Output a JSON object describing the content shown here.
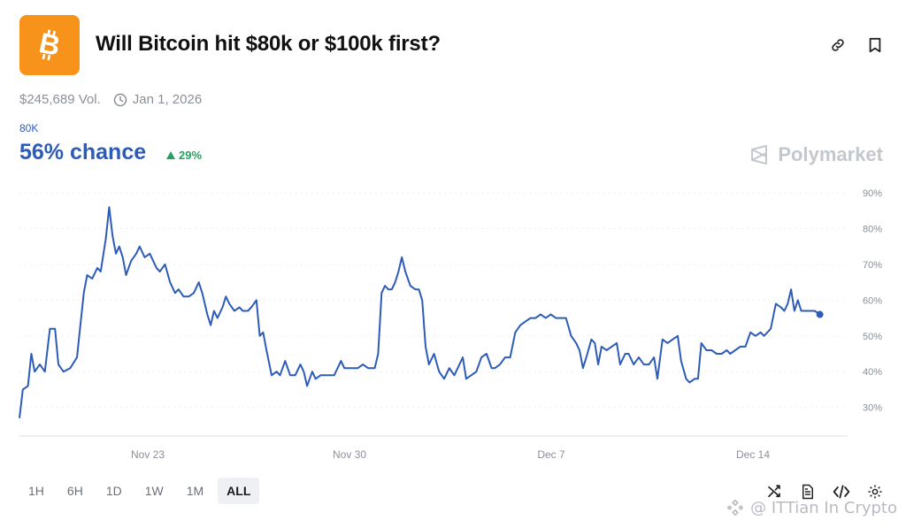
{
  "header": {
    "title": "Will Bitcoin hit $80k or $100k first?",
    "logo_glyph": "B",
    "logo_color": "#f7931a"
  },
  "meta": {
    "volume": "$245,689 Vol.",
    "end_date": "Jan 1, 2026"
  },
  "outcome": {
    "label": "80K",
    "chance": "56% chance",
    "delta": "29%",
    "accent": "#2c5bb8",
    "delta_color": "#27a061"
  },
  "brand": {
    "name": "Polymarket"
  },
  "range_tabs": [
    {
      "label": "1H"
    },
    {
      "label": "6H"
    },
    {
      "label": "1D"
    },
    {
      "label": "1W"
    },
    {
      "label": "1M"
    },
    {
      "label": "ALL",
      "active": true
    }
  ],
  "watermark": "@ ITTian In Crypto",
  "chart_data": {
    "type": "line",
    "xlabel": "",
    "ylabel": "",
    "x_ticks": [
      "Nov 23",
      "Nov 30",
      "Dec 7",
      "Dec 14"
    ],
    "y_ticks": [
      "30%",
      "40%",
      "50%",
      "60%",
      "70%",
      "80%",
      "90%"
    ],
    "ylim": [
      22,
      92
    ],
    "xlim_days": [
      0,
      24
    ],
    "tick_day_positions": [
      4,
      11,
      18,
      25
    ],
    "grid": true,
    "series": [
      {
        "color": "#2c5bb8",
        "points": [
          [
            0.0,
            27
          ],
          [
            0.1,
            35
          ],
          [
            0.25,
            36
          ],
          [
            0.35,
            45
          ],
          [
            0.45,
            40
          ],
          [
            0.6,
            42
          ],
          [
            0.75,
            40
          ],
          [
            0.9,
            52
          ],
          [
            1.05,
            52
          ],
          [
            1.15,
            42
          ],
          [
            1.3,
            40
          ],
          [
            1.5,
            41
          ],
          [
            1.7,
            44
          ],
          [
            1.9,
            62
          ],
          [
            2.0,
            67
          ],
          [
            2.15,
            66
          ],
          [
            2.3,
            69
          ],
          [
            2.4,
            68
          ],
          [
            2.55,
            77
          ],
          [
            2.65,
            86
          ],
          [
            2.75,
            78
          ],
          [
            2.85,
            73
          ],
          [
            2.95,
            75
          ],
          [
            3.05,
            72
          ],
          [
            3.15,
            67
          ],
          [
            3.3,
            71
          ],
          [
            3.45,
            73
          ],
          [
            3.55,
            75
          ],
          [
            3.7,
            72
          ],
          [
            3.85,
            73
          ],
          [
            3.95,
            71
          ],
          [
            4.05,
            69
          ],
          [
            4.15,
            68
          ],
          [
            4.3,
            70
          ],
          [
            4.45,
            65
          ],
          [
            4.6,
            62
          ],
          [
            4.7,
            63
          ],
          [
            4.85,
            61
          ],
          [
            5.0,
            61
          ],
          [
            5.15,
            62
          ],
          [
            5.3,
            65
          ],
          [
            5.4,
            62
          ],
          [
            5.55,
            56
          ],
          [
            5.65,
            53
          ],
          [
            5.75,
            57
          ],
          [
            5.85,
            55
          ],
          [
            6.0,
            58
          ],
          [
            6.1,
            61
          ],
          [
            6.2,
            59
          ],
          [
            6.35,
            57
          ],
          [
            6.5,
            58
          ],
          [
            6.6,
            57
          ],
          [
            6.75,
            57
          ],
          [
            6.85,
            58
          ],
          [
            7.0,
            60
          ],
          [
            7.1,
            50
          ],
          [
            7.2,
            51
          ],
          [
            7.3,
            46
          ],
          [
            7.45,
            39
          ],
          [
            7.6,
            40
          ],
          [
            7.7,
            39
          ],
          [
            7.85,
            43
          ],
          [
            8.0,
            39
          ],
          [
            8.15,
            39
          ],
          [
            8.3,
            42
          ],
          [
            8.4,
            40
          ],
          [
            8.5,
            36
          ],
          [
            8.65,
            40
          ],
          [
            8.75,
            38
          ],
          [
            8.9,
            39
          ],
          [
            9.0,
            39
          ],
          [
            9.15,
            39
          ],
          [
            9.3,
            39
          ],
          [
            9.4,
            41
          ],
          [
            9.5,
            43
          ],
          [
            9.6,
            41
          ],
          [
            9.75,
            41
          ],
          [
            9.9,
            41
          ],
          [
            10.0,
            41
          ],
          [
            10.15,
            42
          ],
          [
            10.3,
            41
          ],
          [
            10.5,
            41
          ],
          [
            10.6,
            45
          ],
          [
            10.7,
            62
          ],
          [
            10.8,
            64
          ],
          [
            10.9,
            63
          ],
          [
            11.0,
            63
          ],
          [
            11.1,
            65
          ],
          [
            11.2,
            68
          ],
          [
            11.3,
            72
          ],
          [
            11.4,
            68
          ],
          [
            11.55,
            64
          ],
          [
            11.7,
            63
          ],
          [
            11.8,
            63
          ],
          [
            11.9,
            60
          ],
          [
            12.0,
            47
          ],
          [
            12.1,
            42
          ],
          [
            12.25,
            45
          ],
          [
            12.4,
            40
          ],
          [
            12.55,
            38
          ],
          [
            12.7,
            41
          ],
          [
            12.85,
            39
          ],
          [
            13.0,
            42
          ],
          [
            13.1,
            44
          ],
          [
            13.2,
            38
          ],
          [
            13.35,
            39
          ],
          [
            13.5,
            40
          ],
          [
            13.65,
            44
          ],
          [
            13.8,
            45
          ],
          [
            13.95,
            41
          ],
          [
            14.05,
            41
          ],
          [
            14.2,
            42
          ],
          [
            14.35,
            44
          ],
          [
            14.5,
            44
          ],
          [
            14.65,
            51
          ],
          [
            14.8,
            53
          ],
          [
            14.95,
            54
          ],
          [
            15.1,
            55
          ],
          [
            15.25,
            55
          ],
          [
            15.4,
            56
          ],
          [
            15.55,
            55
          ],
          [
            15.7,
            56
          ],
          [
            15.85,
            55
          ],
          [
            16.0,
            55
          ],
          [
            16.15,
            55
          ],
          [
            16.3,
            50
          ],
          [
            16.45,
            48
          ],
          [
            16.55,
            46
          ],
          [
            16.65,
            41
          ],
          [
            16.75,
            44
          ],
          [
            16.9,
            49
          ],
          [
            17.0,
            48
          ],
          [
            17.1,
            42
          ],
          [
            17.2,
            47
          ],
          [
            17.35,
            46
          ],
          [
            17.5,
            47
          ],
          [
            17.65,
            48
          ],
          [
            17.75,
            42
          ],
          [
            17.9,
            45
          ],
          [
            18.0,
            45
          ],
          [
            18.15,
            42
          ],
          [
            18.3,
            44
          ],
          [
            18.45,
            42
          ],
          [
            18.6,
            42
          ],
          [
            18.75,
            44
          ],
          [
            18.85,
            38
          ],
          [
            19.0,
            49
          ],
          [
            19.15,
            48
          ],
          [
            19.3,
            49
          ],
          [
            19.45,
            50
          ],
          [
            19.55,
            43
          ],
          [
            19.7,
            38
          ],
          [
            19.8,
            37
          ],
          [
            19.95,
            38
          ],
          [
            20.05,
            38
          ],
          [
            20.15,
            48
          ],
          [
            20.3,
            46
          ],
          [
            20.45,
            46
          ],
          [
            20.6,
            45
          ],
          [
            20.75,
            45
          ],
          [
            20.9,
            46
          ],
          [
            21.0,
            45
          ],
          [
            21.15,
            46
          ],
          [
            21.3,
            47
          ],
          [
            21.45,
            47
          ],
          [
            21.6,
            51
          ],
          [
            21.75,
            50
          ],
          [
            21.9,
            51
          ],
          [
            22.0,
            50
          ],
          [
            22.1,
            51
          ],
          [
            22.2,
            52
          ],
          [
            22.35,
            59
          ],
          [
            22.5,
            58
          ],
          [
            22.6,
            57
          ],
          [
            22.7,
            59
          ],
          [
            22.8,
            63
          ],
          [
            22.9,
            57
          ],
          [
            23.0,
            60
          ],
          [
            23.1,
            57
          ],
          [
            23.3,
            57
          ],
          [
            23.5,
            57
          ],
          [
            23.65,
            56
          ]
        ]
      }
    ],
    "last_value": 56
  }
}
